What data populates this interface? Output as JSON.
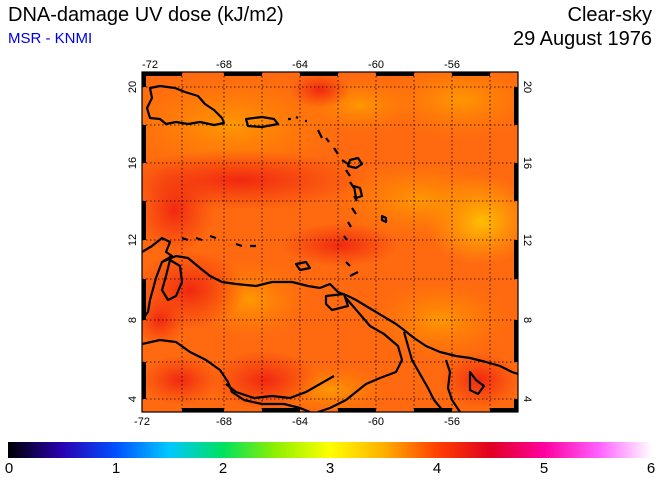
{
  "header": {
    "title": "DNA-damage UV dose (kJ/m2)",
    "subtitle": "MSR - KNMI",
    "condition": "Clear-sky",
    "date": "29 August 1976"
  },
  "map": {
    "lon_range": [
      -73,
      -52.5
    ],
    "lat_range": [
      3.5,
      20.5
    ],
    "top_lon_labels": [
      "-72",
      "-68",
      "-64",
      "-60",
      "-56"
    ],
    "bottom_lon_labels": [
      "-72",
      "-68",
      "-64",
      "-60",
      "-56"
    ],
    "left_lat_labels": [
      "20",
      "16",
      "12",
      "8",
      "4"
    ],
    "right_lat_labels": [
      "20",
      "16",
      "12",
      "8",
      "4"
    ],
    "gridlines": "dotted",
    "coastline_color": "#000000"
  },
  "colorbar": {
    "min": 0,
    "max": 6,
    "labels": [
      "0",
      "1",
      "2",
      "3",
      "4",
      "5",
      "6"
    ],
    "colors": [
      "#000000",
      "#2a00b0",
      "#0050ff",
      "#00c8ff",
      "#00e060",
      "#90f000",
      "#ffff00",
      "#ffb000",
      "#ff4000",
      "#e00020",
      "#ff00a0",
      "#ff60ff",
      "#ffffff"
    ]
  }
}
